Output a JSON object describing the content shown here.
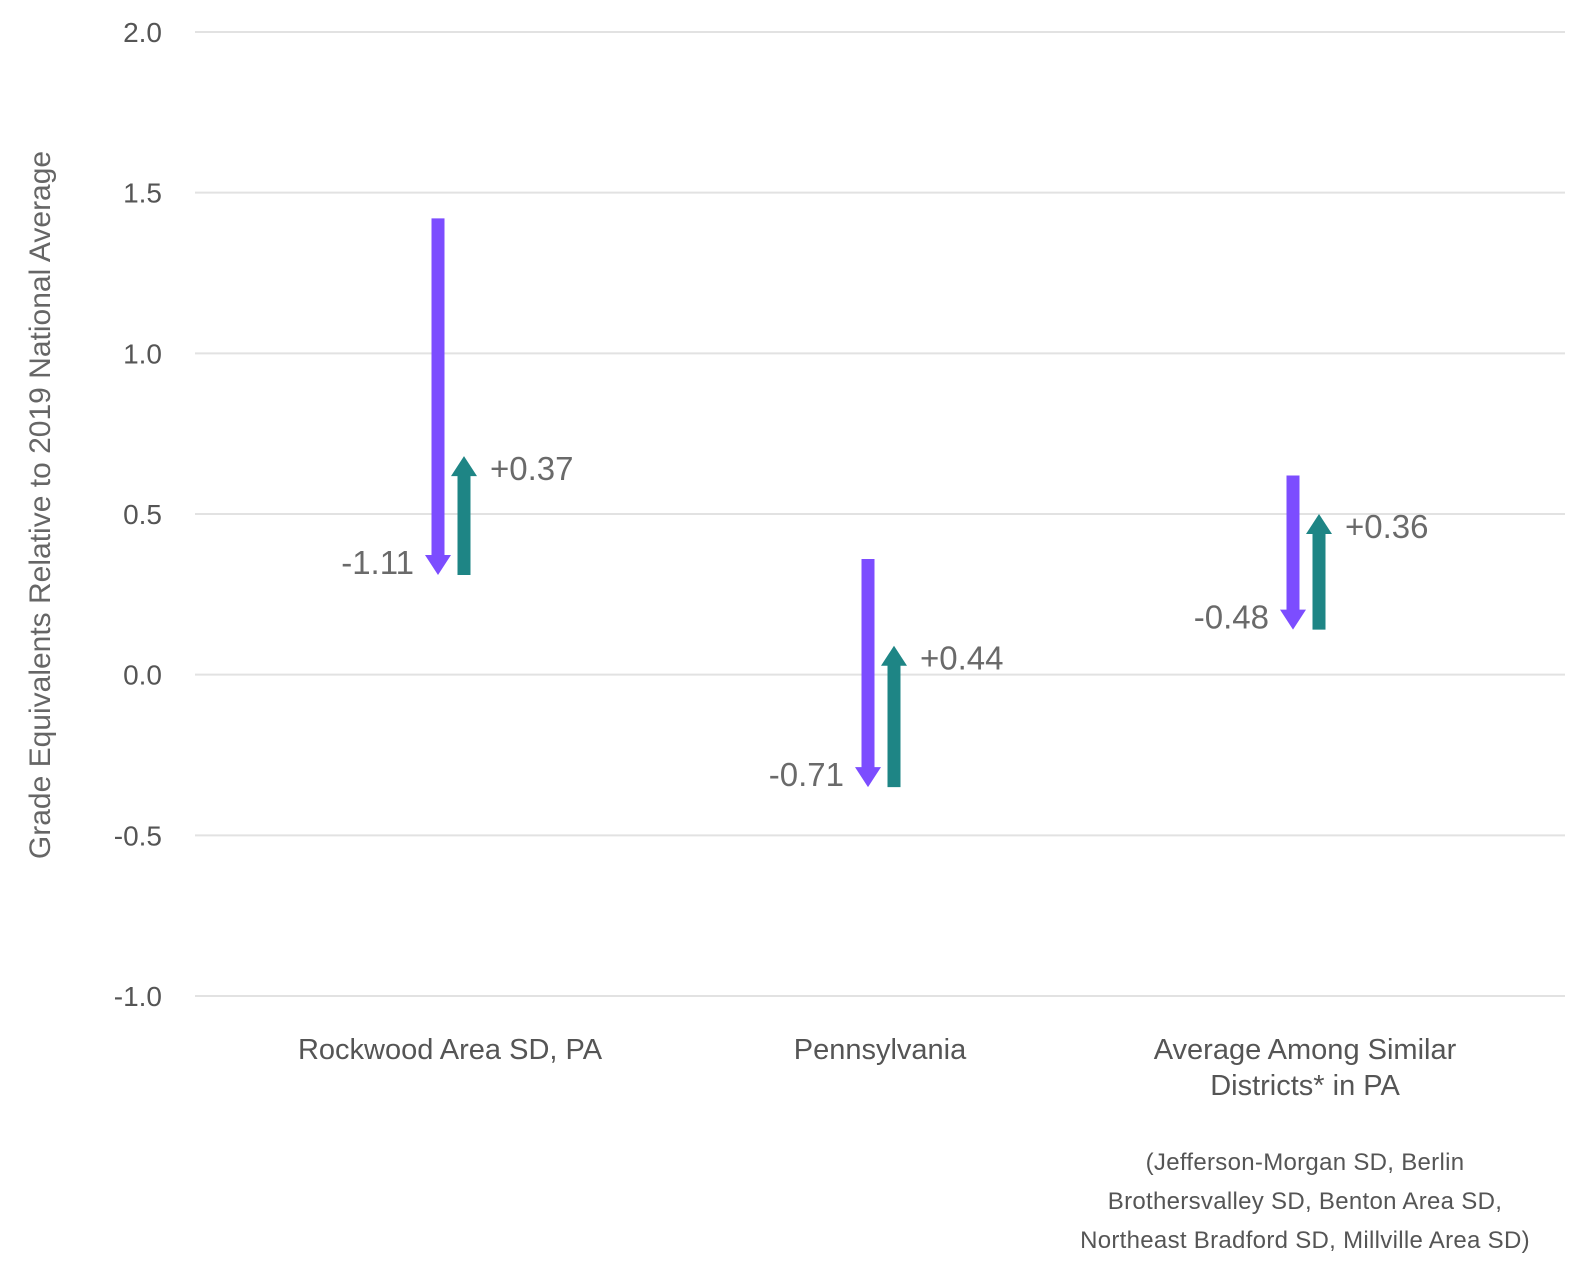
{
  "chart_data": {
    "type": "arrow",
    "ylabel": "Grade Equivalents Relative to 2019 National Average",
    "ylim": [
      -1.0,
      2.0
    ],
    "yticks": [
      "2.0",
      "1.5",
      "1.0",
      "0.5",
      "0.0",
      "-0.5",
      "-1.0"
    ],
    "grid": true,
    "categories": [
      {
        "label_lines": [
          "Rockwood Area SD, PA"
        ],
        "note_lines": []
      },
      {
        "label_lines": [
          "Pennsylvania"
        ],
        "note_lines": []
      },
      {
        "label_lines": [
          "Average Among Similar",
          "Districts* in PA"
        ],
        "note_lines": [
          "(Jefferson-Morgan SD, Berlin",
          "Brothersvalley SD, Benton Area SD,",
          "Northeast Bradford SD, Millville Area SD)"
        ]
      }
    ],
    "series": [
      {
        "direction": "down",
        "color": "#7c4dff",
        "start": [
          1.42,
          0.36,
          0.62
        ],
        "end": [
          0.31,
          -0.35,
          0.14
        ],
        "labels": [
          "-1.11",
          "-0.71",
          "-0.48"
        ]
      },
      {
        "direction": "up",
        "color": "#1e8585",
        "start": [
          0.31,
          -0.35,
          0.14
        ],
        "end": [
          0.68,
          0.09,
          0.5
        ],
        "labels": [
          "+0.37",
          "+0.44",
          "+0.36"
        ]
      }
    ]
  }
}
